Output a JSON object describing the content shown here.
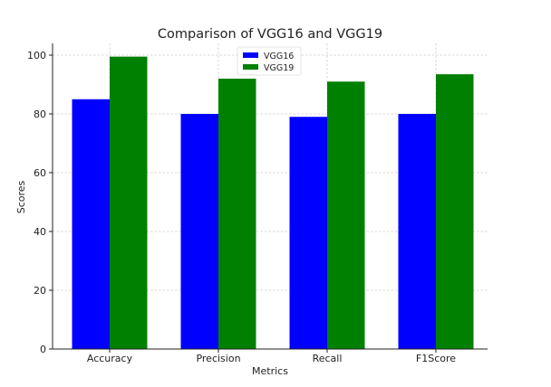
{
  "chart_data": {
    "type": "bar",
    "title": "Comparison of VGG16 and VGG19",
    "xlabel": "Metrics",
    "ylabel": "Scores",
    "categories": [
      "Accuracy",
      "Precision",
      "Recall",
      "F1Score"
    ],
    "series": [
      {
        "name": "VGG16",
        "color": "#0000ff",
        "values": [
          85,
          80,
          79,
          80
        ]
      },
      {
        "name": "VGG19",
        "color": "#008000",
        "values": [
          99.5,
          92,
          91,
          93.5
        ]
      }
    ],
    "ylim": [
      0,
      104
    ],
    "yticks": [
      0,
      20,
      40,
      60,
      80,
      100
    ],
    "grid": true,
    "legend_position": "top-center"
  }
}
